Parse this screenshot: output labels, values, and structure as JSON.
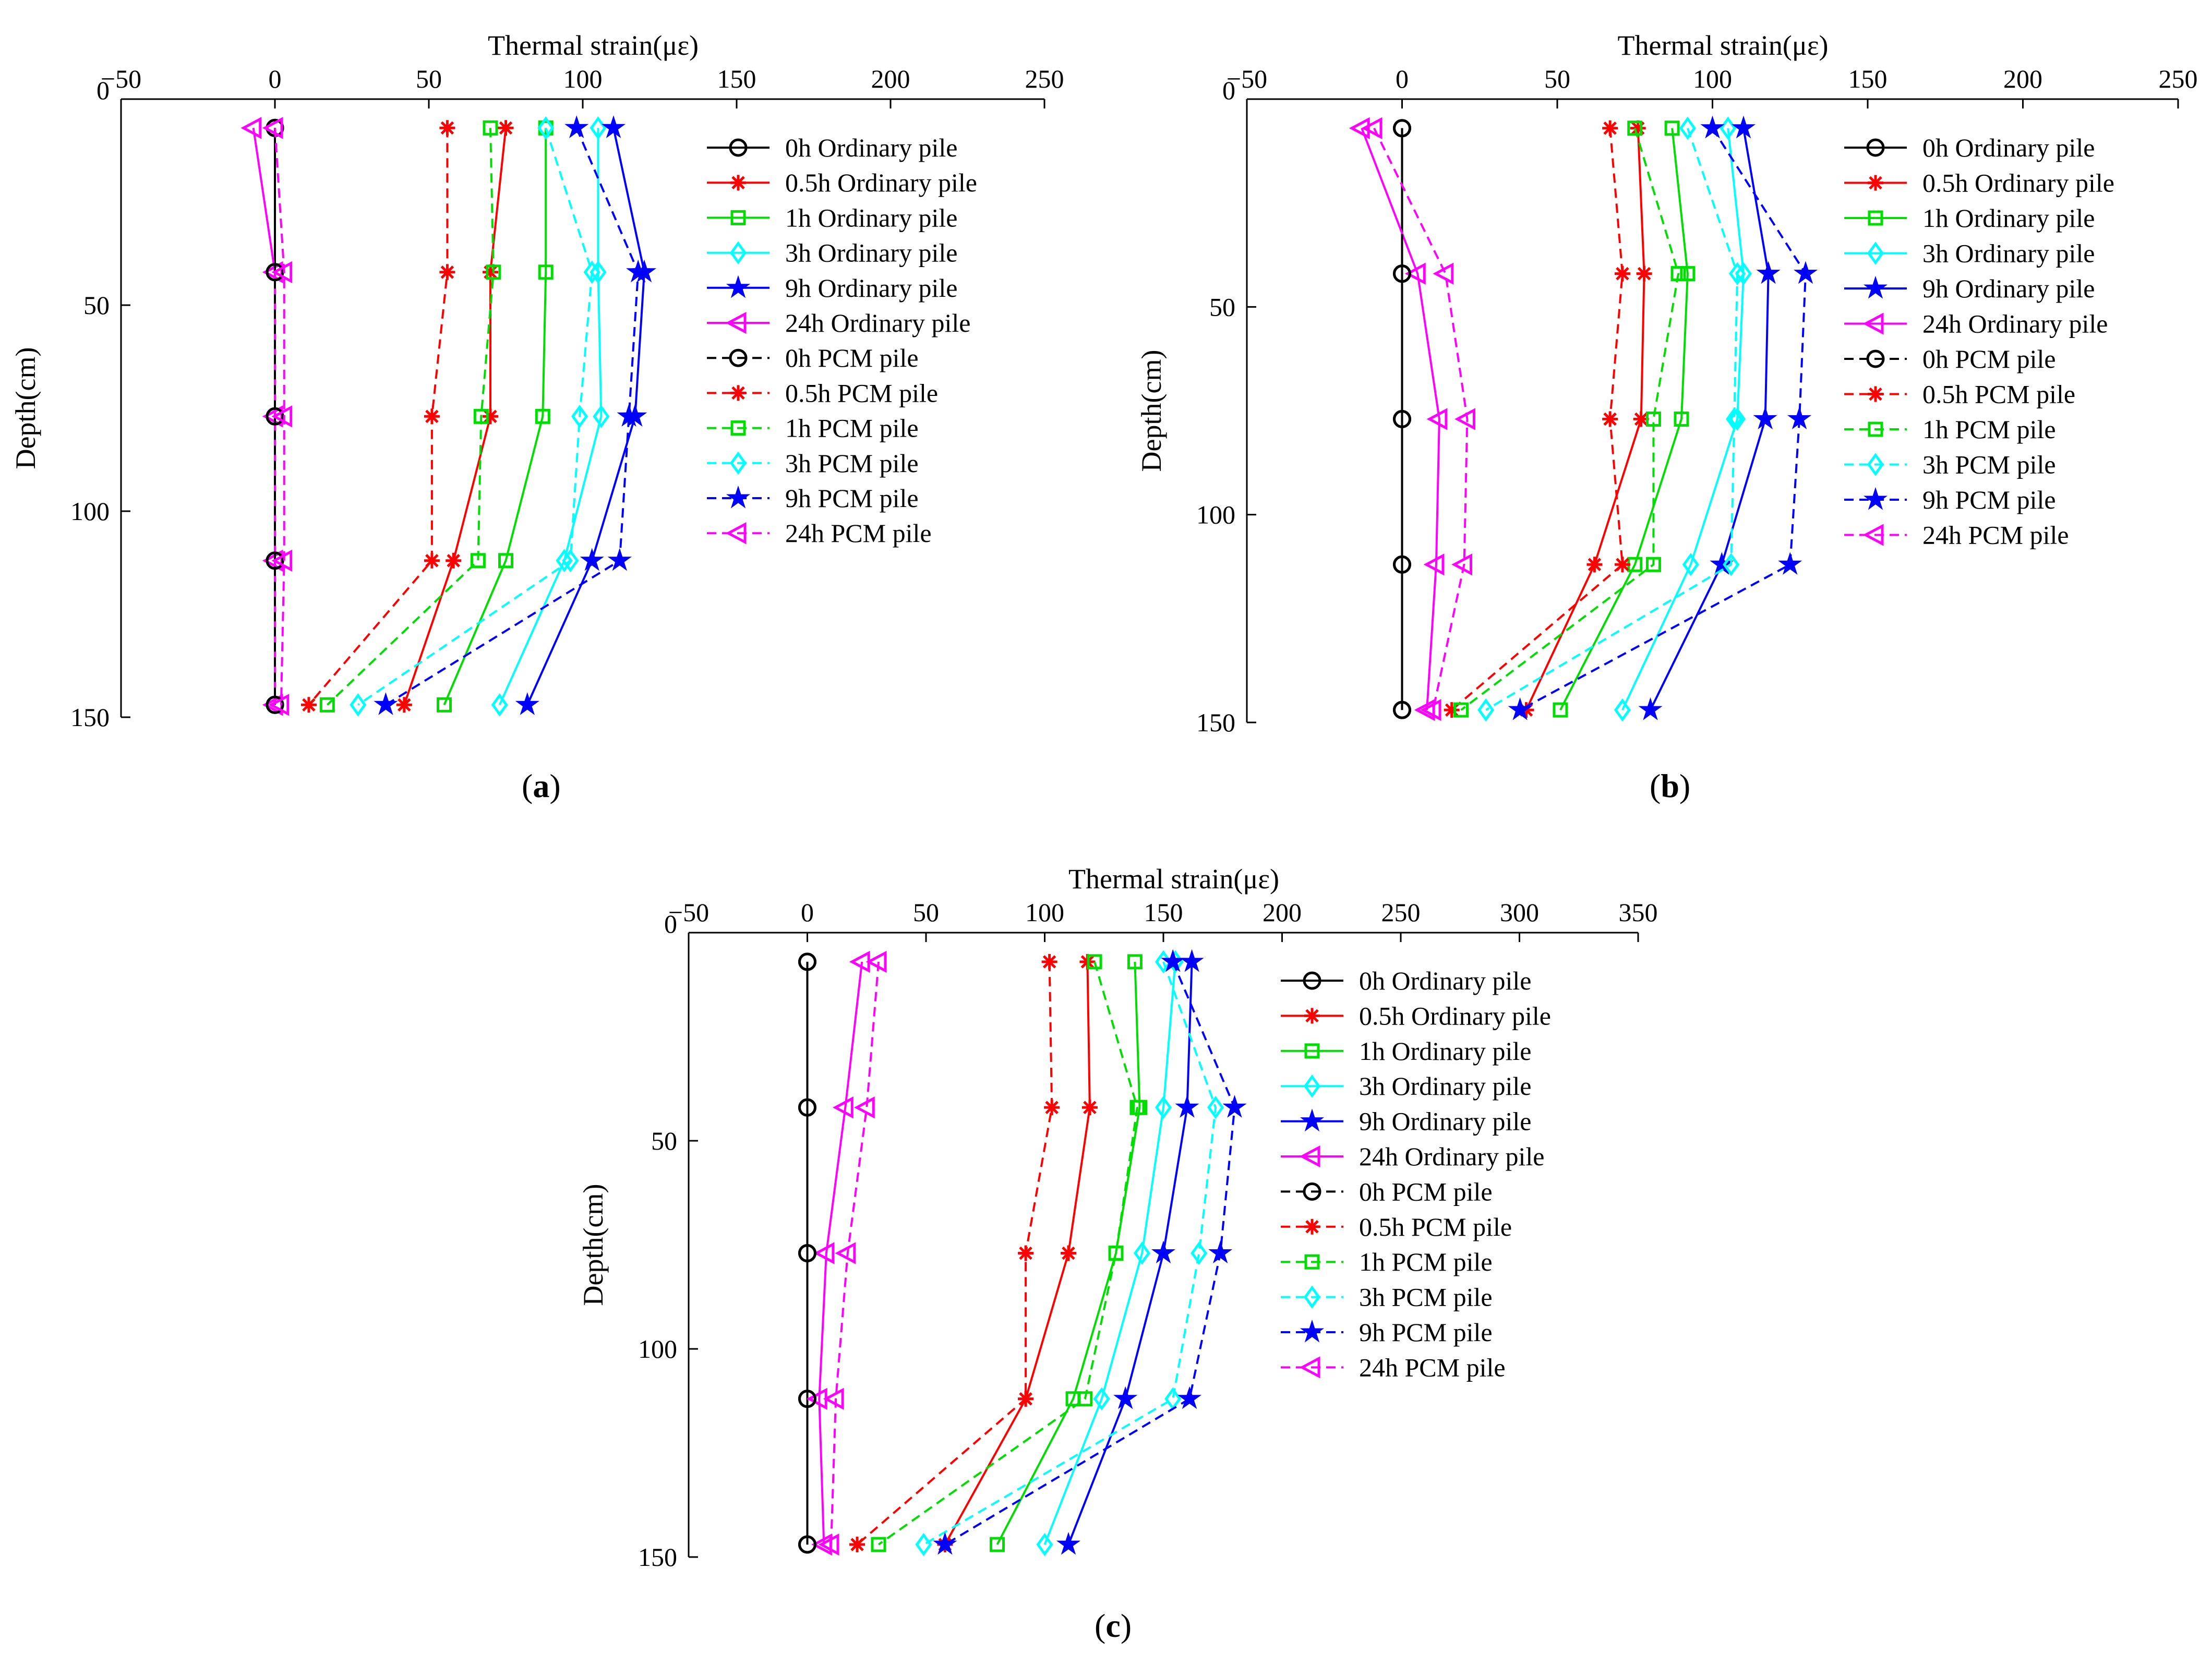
{
  "figure_labels": {
    "a": "a",
    "b": "b",
    "c": "c"
  },
  "chart_data": [
    {
      "id": "a",
      "type": "line",
      "xlabel": "Thermal strain(με)",
      "ylabel": "Depth(cm)",
      "xlim": [
        -50,
        250
      ],
      "ylim": [
        0,
        150
      ],
      "x_ticks": [
        -50,
        0,
        50,
        100,
        150,
        200,
        250
      ],
      "y_ticks": [
        0,
        50,
        100,
        150
      ],
      "x_axis_position": "top",
      "y_direction": "reversed",
      "legend_position": "right",
      "depths": [
        7,
        42,
        77,
        112,
        147
      ],
      "series": [
        {
          "name": "0h Ordinary pile",
          "color": "#000000",
          "marker": "circle",
          "dash": "solid",
          "values": [
            0,
            0,
            0,
            0,
            0
          ]
        },
        {
          "name": "0.5h Ordinary pile",
          "color": "#ff0000",
          "marker": "asterisk",
          "dash": "solid",
          "values": [
            75,
            70,
            70,
            58,
            42
          ]
        },
        {
          "name": "1h Ordinary pile",
          "color": "#00dd00",
          "marker": "square",
          "dash": "solid",
          "values": [
            88,
            88,
            87,
            75,
            55
          ]
        },
        {
          "name": "3h Ordinary pile",
          "color": "#00ffff",
          "marker": "diamond",
          "dash": "solid",
          "values": [
            105,
            105,
            106,
            94,
            73
          ]
        },
        {
          "name": "9h Ordinary pile",
          "color": "#0000ff",
          "marker": "star",
          "dash": "solid",
          "values": [
            110,
            120,
            117,
            103,
            82
          ]
        },
        {
          "name": "24h Ordinary pile",
          "color": "#ff00ff",
          "marker": "triangle-left",
          "dash": "solid",
          "values": [
            -7,
            0,
            0,
            0,
            0
          ]
        },
        {
          "name": "0h PCM pile",
          "color": "#000000",
          "marker": "circle",
          "dash": "dashed",
          "values": [
            0,
            0,
            0,
            0,
            0
          ]
        },
        {
          "name": "0.5h PCM pile",
          "color": "#ff0000",
          "marker": "asterisk",
          "dash": "dashed",
          "values": [
            56,
            56,
            51,
            51,
            11
          ]
        },
        {
          "name": "1h PCM pile",
          "color": "#00dd00",
          "marker": "square",
          "dash": "dashed",
          "values": [
            70,
            71,
            67,
            66,
            17
          ]
        },
        {
          "name": "3h PCM pile",
          "color": "#00ffff",
          "marker": "diamond",
          "dash": "dashed",
          "values": [
            88,
            103,
            99,
            96,
            27
          ]
        },
        {
          "name": "9h PCM pile",
          "color": "#0000ff",
          "marker": "star",
          "dash": "dashed",
          "values": [
            98,
            118,
            115,
            112,
            36
          ]
        },
        {
          "name": "24h PCM pile",
          "color": "#ff00ff",
          "marker": "triangle-left",
          "dash": "dashed",
          "values": [
            0,
            3,
            3,
            3,
            2
          ]
        }
      ]
    },
    {
      "id": "b",
      "type": "line",
      "xlabel": "Thermal strain(με)",
      "ylabel": "Depth(cm)",
      "xlim": [
        -50,
        250
      ],
      "ylim": [
        0,
        150
      ],
      "x_ticks": [
        -50,
        0,
        50,
        100,
        150,
        200,
        250
      ],
      "y_ticks": [
        0,
        50,
        100,
        150
      ],
      "x_axis_position": "top",
      "y_direction": "reversed",
      "legend_position": "right",
      "depths": [
        7,
        42,
        77,
        112,
        147
      ],
      "series": [
        {
          "name": "0h Ordinary pile",
          "color": "#000000",
          "marker": "circle",
          "dash": "solid",
          "values": [
            0,
            0,
            0,
            0,
            0
          ]
        },
        {
          "name": "0.5h Ordinary pile",
          "color": "#ff0000",
          "marker": "asterisk",
          "dash": "solid",
          "values": [
            76,
            78,
            77,
            62,
            40
          ]
        },
        {
          "name": "1h Ordinary pile",
          "color": "#00dd00",
          "marker": "square",
          "dash": "solid",
          "values": [
            87,
            92,
            90,
            75,
            51
          ]
        },
        {
          "name": "3h Ordinary pile",
          "color": "#00ffff",
          "marker": "diamond",
          "dash": "solid",
          "values": [
            105,
            110,
            108,
            93,
            71
          ]
        },
        {
          "name": "9h Ordinary pile",
          "color": "#0000ff",
          "marker": "star",
          "dash": "solid",
          "values": [
            110,
            118,
            117,
            103,
            80
          ]
        },
        {
          "name": "24h Ordinary pile",
          "color": "#ff00ff",
          "marker": "triangle-left",
          "dash": "solid",
          "values": [
            -13,
            5,
            12,
            11,
            8
          ]
        },
        {
          "name": "0h PCM pile",
          "color": "#000000",
          "marker": "circle",
          "dash": "dashed",
          "values": [
            0,
            0,
            0,
            0,
            0
          ]
        },
        {
          "name": "0.5h PCM pile",
          "color": "#ff0000",
          "marker": "asterisk",
          "dash": "dashed",
          "values": [
            67,
            71,
            67,
            71,
            16
          ]
        },
        {
          "name": "1h PCM pile",
          "color": "#00dd00",
          "marker": "square",
          "dash": "dashed",
          "values": [
            75,
            89,
            81,
            81,
            19
          ]
        },
        {
          "name": "3h PCM pile",
          "color": "#00ffff",
          "marker": "diamond",
          "dash": "dashed",
          "values": [
            92,
            108,
            107,
            106,
            27
          ]
        },
        {
          "name": "9h PCM pile",
          "color": "#0000ff",
          "marker": "star",
          "dash": "dashed",
          "values": [
            100,
            130,
            128,
            125,
            38
          ]
        },
        {
          "name": "24h PCM pile",
          "color": "#ff00ff",
          "marker": "triangle-left",
          "dash": "dashed",
          "values": [
            -9,
            14,
            21,
            20,
            10
          ]
        }
      ]
    },
    {
      "id": "c",
      "type": "line",
      "xlabel": "Thermal strain(με)",
      "ylabel": "Depth(cm)",
      "xlim": [
        -50,
        350
      ],
      "ylim": [
        0,
        150
      ],
      "x_ticks": [
        -50,
        0,
        50,
        100,
        150,
        200,
        250,
        300,
        350
      ],
      "y_ticks": [
        0,
        50,
        100,
        150
      ],
      "x_axis_position": "top",
      "y_direction": "reversed",
      "legend_position": "right",
      "depths": [
        7,
        42,
        77,
        112,
        147
      ],
      "series": [
        {
          "name": "0h Ordinary pile",
          "color": "#000000",
          "marker": "circle",
          "dash": "solid",
          "values": [
            0,
            0,
            0,
            0,
            0
          ]
        },
        {
          "name": "0.5h Ordinary pile",
          "color": "#ff0000",
          "marker": "asterisk",
          "dash": "solid",
          "values": [
            118,
            119,
            110,
            92,
            58
          ]
        },
        {
          "name": "1h Ordinary pile",
          "color": "#00dd00",
          "marker": "square",
          "dash": "solid",
          "values": [
            138,
            140,
            130,
            112,
            80
          ]
        },
        {
          "name": "3h Ordinary pile",
          "color": "#00ffff",
          "marker": "diamond",
          "dash": "solid",
          "values": [
            155,
            150,
            141,
            124,
            100
          ]
        },
        {
          "name": "9h Ordinary pile",
          "color": "#0000ff",
          "marker": "star",
          "dash": "solid",
          "values": [
            162,
            160,
            150,
            134,
            110
          ]
        },
        {
          "name": "24h Ordinary pile",
          "color": "#ff00ff",
          "marker": "triangle-left",
          "dash": "solid",
          "values": [
            23,
            16,
            8,
            5,
            7
          ]
        },
        {
          "name": "0h PCM pile",
          "color": "#000000",
          "marker": "circle",
          "dash": "dashed",
          "values": [
            0,
            0,
            0,
            0,
            0
          ]
        },
        {
          "name": "0.5h PCM pile",
          "color": "#ff0000",
          "marker": "asterisk",
          "dash": "dashed",
          "values": [
            102,
            103,
            92,
            92,
            21
          ]
        },
        {
          "name": "1h PCM pile",
          "color": "#00dd00",
          "marker": "square",
          "dash": "dashed",
          "values": [
            121,
            139,
            130,
            117,
            30
          ]
        },
        {
          "name": "3h PCM pile",
          "color": "#00ffff",
          "marker": "diamond",
          "dash": "dashed",
          "values": [
            150,
            172,
            165,
            154,
            49
          ]
        },
        {
          "name": "9h PCM pile",
          "color": "#0000ff",
          "marker": "star",
          "dash": "dashed",
          "values": [
            154,
            180,
            174,
            161,
            58
          ]
        },
        {
          "name": "24h PCM pile",
          "color": "#ff00ff",
          "marker": "triangle-left",
          "dash": "dashed",
          "values": [
            30,
            25,
            17,
            12,
            10
          ]
        }
      ]
    }
  ]
}
